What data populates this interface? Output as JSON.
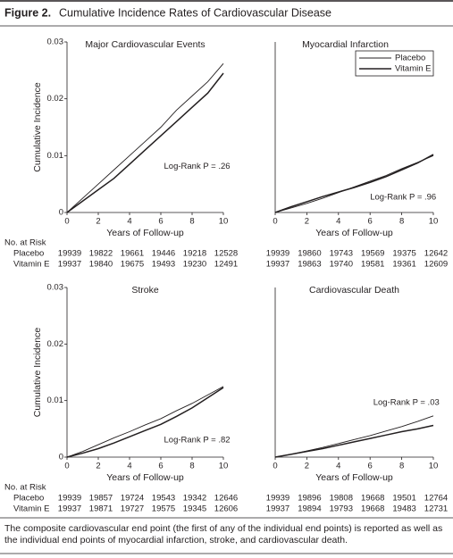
{
  "figure_label": "Figure 2.",
  "figure_title": "Cumulative Incidence Rates of Cardiovascular Disease",
  "caption": "The composite cardiovascular end point (the first of any of the individual end points) is reported as well as the individual end points of myocardial infarction, stroke, and cardiovascular death.",
  "chart_data": [
    {
      "type": "line",
      "title": "Major Cardiovascular Events",
      "xlabel": "Years of Follow-up",
      "ylabel": "Cumulative Incidence",
      "annotation": "Log-Rank P = .26",
      "x": [
        0,
        1,
        2,
        3,
        4,
        5,
        6,
        7,
        8,
        9,
        10
      ],
      "series": [
        {
          "name": "Placebo",
          "color": "#231f20",
          "width": 0.9,
          "values": [
            0,
            0.0025,
            0.005,
            0.0075,
            0.01,
            0.0125,
            0.015,
            0.018,
            0.0205,
            0.023,
            0.0262
          ]
        },
        {
          "name": "Vitamin E",
          "color": "#231f20",
          "width": 1.5,
          "values": [
            0,
            0.002,
            0.004,
            0.006,
            0.0085,
            0.011,
            0.0135,
            0.016,
            0.0185,
            0.021,
            0.0245
          ]
        }
      ],
      "xlim": [
        0,
        10
      ],
      "xticks": [
        0,
        2,
        4,
        6,
        8,
        10
      ],
      "ylim": [
        0,
        0.03
      ],
      "yticks": [
        0,
        0.01,
        0.02,
        0.03
      ],
      "at_risk_title": "No. at Risk",
      "at_risk": [
        {
          "label": "Placebo",
          "values": [
            19939,
            19822,
            19661,
            19446,
            19218,
            12528
          ]
        },
        {
          "label": "Vitamin E",
          "values": [
            19937,
            19840,
            19675,
            19493,
            19230,
            12491
          ]
        }
      ]
    },
    {
      "type": "line",
      "title": "Myocardial Infarction",
      "xlabel": "Years of Follow-up",
      "annotation": "Log-Rank P = .96",
      "legend": "upper right",
      "x": [
        0,
        1,
        2,
        3,
        4,
        5,
        6,
        7,
        8,
        9,
        10
      ],
      "series": [
        {
          "name": "Placebo",
          "color": "#231f20",
          "width": 0.9,
          "values": [
            0,
            0.0008,
            0.0016,
            0.0025,
            0.0035,
            0.0045,
            0.0055,
            0.0065,
            0.0077,
            0.0088,
            0.01
          ]
        },
        {
          "name": "Vitamin E",
          "color": "#231f20",
          "width": 1.5,
          "values": [
            0,
            0.001,
            0.0019,
            0.0028,
            0.0036,
            0.0044,
            0.0053,
            0.0063,
            0.0075,
            0.0087,
            0.0102
          ]
        }
      ],
      "xlim": [
        0,
        10
      ],
      "xticks": [
        0,
        2,
        4,
        6,
        8,
        10
      ],
      "ylim": [
        0,
        0.03
      ],
      "at_risk": [
        {
          "values": [
            19939,
            19860,
            19743,
            19569,
            19375,
            12642
          ]
        },
        {
          "values": [
            19937,
            19863,
            19740,
            19581,
            19361,
            12609
          ]
        }
      ]
    },
    {
      "type": "line",
      "title": "Stroke",
      "xlabel": "Years of Follow-up",
      "ylabel": "Cumulative Incidence",
      "annotation": "Log-Rank P = .82",
      "x": [
        0,
        1,
        2,
        3,
        4,
        5,
        6,
        7,
        8,
        9,
        10
      ],
      "series": [
        {
          "name": "Placebo",
          "color": "#231f20",
          "width": 0.9,
          "values": [
            0,
            0.001,
            0.0022,
            0.0034,
            0.0045,
            0.0057,
            0.0068,
            0.0082,
            0.0095,
            0.011,
            0.0125
          ]
        },
        {
          "name": "Vitamin E",
          "color": "#231f20",
          "width": 1.5,
          "values": [
            0,
            0.0007,
            0.0015,
            0.0025,
            0.0036,
            0.0047,
            0.0058,
            0.0072,
            0.0087,
            0.0105,
            0.0123
          ]
        }
      ],
      "xlim": [
        0,
        10
      ],
      "xticks": [
        0,
        2,
        4,
        6,
        8,
        10
      ],
      "ylim": [
        0,
        0.03
      ],
      "yticks": [
        0,
        0.01,
        0.02,
        0.03
      ],
      "at_risk_title": "No. at Risk",
      "at_risk": [
        {
          "label": "Placebo",
          "values": [
            19939,
            19857,
            19724,
            19543,
            19342,
            12646
          ]
        },
        {
          "label": "Vitamin E",
          "values": [
            19937,
            19871,
            19727,
            19575,
            19345,
            12606
          ]
        }
      ]
    },
    {
      "type": "line",
      "title": "Cardiovascular Death",
      "xlabel": "Years of Follow-up",
      "annotation": "Log-Rank P = .03",
      "x": [
        0,
        1,
        2,
        3,
        4,
        5,
        6,
        7,
        8,
        9,
        10
      ],
      "series": [
        {
          "name": "Placebo",
          "color": "#231f20",
          "width": 0.9,
          "values": [
            0,
            0.0005,
            0.0011,
            0.0017,
            0.0024,
            0.0031,
            0.0038,
            0.0046,
            0.0054,
            0.0063,
            0.0073
          ]
        },
        {
          "name": "Vitamin E",
          "color": "#231f20",
          "width": 1.5,
          "values": [
            0,
            0.0005,
            0.001,
            0.0015,
            0.0021,
            0.0027,
            0.0033,
            0.0039,
            0.0045,
            0.005,
            0.0056
          ]
        }
      ],
      "xlim": [
        0,
        10
      ],
      "xticks": [
        0,
        2,
        4,
        6,
        8,
        10
      ],
      "ylim": [
        0,
        0.03
      ],
      "at_risk": [
        {
          "values": [
            19939,
            19896,
            19808,
            19668,
            19501,
            12764
          ]
        },
        {
          "values": [
            19937,
            19894,
            19793,
            19668,
            19483,
            12731
          ]
        }
      ]
    }
  ]
}
